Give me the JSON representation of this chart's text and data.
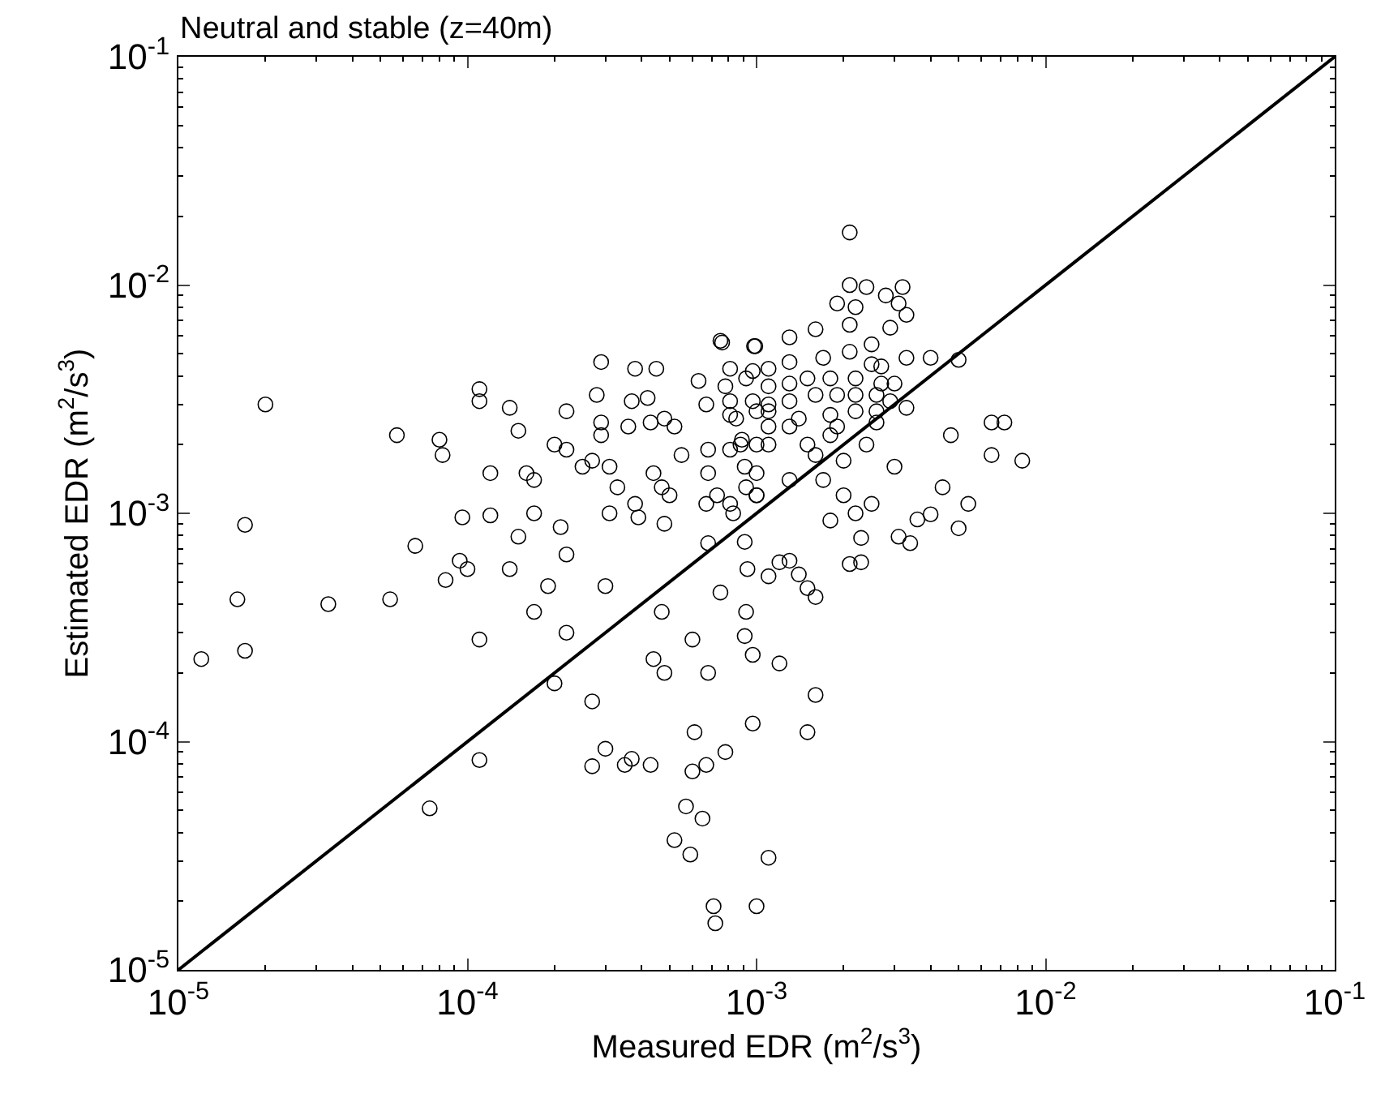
{
  "chart_data": {
    "type": "scatter",
    "title": "Neutral and stable (z=40m)",
    "xlabel": "Measured EDR (m$^{2}$/s$^{3}$)",
    "ylabel": "Estimated EDR (m$^{2}$/s$^{3}$)",
    "log": "xy",
    "xlim": [
      1e-05,
      0.1
    ],
    "ylim": [
      1e-05,
      0.1
    ],
    "xticks": [
      {
        "value": 1e-05,
        "label": "10$^{-5}$"
      },
      {
        "value": 0.0001,
        "label": "10$^{-4}$"
      },
      {
        "value": 0.001,
        "label": "10$^{-3}$"
      },
      {
        "value": 0.01,
        "label": "10$^{-2}$"
      },
      {
        "value": 0.1,
        "label": "10$^{-1}$"
      }
    ],
    "yticks": [
      {
        "value": 1e-05,
        "label": "10$^{-5}$"
      },
      {
        "value": 0.0001,
        "label": "10$^{-4}$"
      },
      {
        "value": 0.001,
        "label": "10$^{-3}$"
      },
      {
        "value": 0.01,
        "label": "10$^{-2}$"
      },
      {
        "value": 0.1,
        "label": "10$^{-1}$"
      }
    ],
    "series": [
      {
        "color": "#000000",
        "marker": "circle",
        "x": [
          1.2e-05,
          1.7e-05,
          1.6e-05,
          1.7e-05,
          2e-05,
          3.3e-05,
          5.4e-05,
          5.7e-05,
          6.6e-05,
          8e-05,
          8.2e-05,
          0.00011,
          0.00011,
          0.00011,
          0.00012,
          9.6e-05,
          0.00012,
          8.4e-05,
          9.4e-05,
          0.0001,
          0.00011,
          7.4e-05,
          0.00014,
          0.00014,
          0.00015,
          0.00017,
          0.00015,
          0.00017,
          0.00019,
          0.00021,
          0.00022,
          0.00022,
          0.00022,
          0.00016,
          0.00017,
          0.0002,
          0.00022,
          0.00025,
          0.00027,
          0.00029,
          0.00028,
          0.00029,
          0.00029,
          0.00031,
          0.00031,
          0.00033,
          0.00036,
          0.00037,
          0.00038,
          0.00039,
          0.00038,
          0.0003,
          0.0002,
          0.00027,
          0.0003,
          0.00027,
          0.00035,
          0.00037,
          0.00043,
          0.00045,
          0.00042,
          0.00043,
          0.00044,
          0.00047,
          0.0005,
          0.00048,
          0.00047,
          0.00044,
          0.00048,
          0.00048,
          0.00052,
          0.00055,
          0.0006,
          0.00061,
          0.0006,
          0.00067,
          0.00078,
          0.00057,
          0.00065,
          0.00052,
          0.00059,
          0.00068,
          0.00075,
          0.00068,
          0.00067,
          0.00076,
          0.00097,
          0.00091,
          0.00093,
          0.00092,
          0.00091,
          0.00097,
          0.0011,
          0.001,
          0.00081,
          0.00073,
          0.00098,
          0.00063,
          0.00078,
          0.00092,
          0.001,
          0.00085,
          0.00067,
          0.00068,
          0.00081,
          0.00089,
          0.001,
          0.00091,
          0.001,
          0.00068,
          0.0021,
          0.0021,
          0.0024,
          0.0032,
          0.0019,
          0.0022,
          0.0028,
          0.0031,
          0.0033,
          0.00075,
          0.00099,
          0.0013,
          0.0016,
          0.0021,
          0.0029,
          0.0025,
          0.004,
          0.005,
          0.0033,
          0.00081,
          0.00097,
          0.0011,
          0.0013,
          0.0017,
          0.0021,
          0.0025,
          0.0027,
          0.0011,
          0.0013,
          0.0015,
          0.0018,
          0.0022,
          0.0027,
          0.003,
          0.00081,
          0.00097,
          0.0011,
          0.0013,
          0.0016,
          0.0019,
          0.0022,
          0.0026,
          0.00081,
          0.0011,
          0.0014,
          0.0018,
          0.0022,
          0.0026,
          0.0029,
          0.0033,
          0.0026,
          0.0019,
          0.0013,
          0.0011,
          0.0047,
          0.0065,
          0.0072,
          0.00088,
          0.0011,
          0.0015,
          0.0018,
          0.0024,
          0.0065,
          0.0083,
          0.003,
          0.0016,
          0.002,
          0.0017,
          0.0013,
          0.001,
          0.00092,
          0.00083,
          0.002,
          0.0022,
          0.0025,
          0.0018,
          0.0054,
          0.0044,
          0.004,
          0.0036,
          0.005,
          0.0031,
          0.0034,
          0.0023,
          0.0023,
          0.0021,
          0.0011,
          0.0012,
          0.0013,
          0.0014,
          0.0015,
          0.0016,
          0.0012,
          0.0016,
          0.0015,
          0.00071,
          0.00072,
          0.001
        ],
        "values": [
          0.00023,
          0.00025,
          0.00042,
          0.00089,
          0.003,
          0.0004,
          0.00042,
          0.0022,
          0.00072,
          0.0021,
          0.0018,
          0.0035,
          0.0031,
          0.00028,
          0.0015,
          0.00096,
          0.00098,
          0.00051,
          0.00062,
          0.00057,
          8.3e-05,
          5.1e-05,
          0.00057,
          0.0029,
          0.0023,
          0.001,
          0.00079,
          0.00037,
          0.00048,
          0.00087,
          0.00066,
          0.0003,
          0.0028,
          0.0015,
          0.0014,
          0.002,
          0.0019,
          0.0016,
          0.0017,
          0.0046,
          0.0033,
          0.0025,
          0.0022,
          0.0016,
          0.001,
          0.0013,
          0.0024,
          0.0031,
          0.0043,
          0.00096,
          0.0011,
          0.00048,
          0.00018,
          0.00015,
          9.3e-05,
          7.8e-05,
          7.9e-05,
          8.4e-05,
          7.9e-05,
          0.0043,
          0.0032,
          0.0025,
          0.0015,
          0.0013,
          0.0012,
          0.0009,
          0.00037,
          0.00023,
          0.0002,
          0.0026,
          0.0024,
          0.0018,
          0.00028,
          0.00011,
          7.4e-05,
          7.9e-05,
          9e-05,
          5.2e-05,
          4.6e-05,
          3.7e-05,
          3.2e-05,
          0.0002,
          0.00045,
          0.00074,
          0.0011,
          0.0056,
          0.00012,
          0.00075,
          0.00057,
          0.00037,
          0.00029,
          0.00024,
          3.1e-05,
          0.0012,
          0.0011,
          0.0012,
          0.0054,
          0.0038,
          0.0036,
          0.0039,
          0.0028,
          0.0026,
          0.003,
          0.0019,
          0.0019,
          0.0021,
          0.002,
          0.0016,
          0.0012,
          0.0015,
          0.017,
          0.01,
          0.0098,
          0.0098,
          0.0083,
          0.008,
          0.009,
          0.0083,
          0.0074,
          0.0057,
          0.0054,
          0.0059,
          0.0064,
          0.0067,
          0.0065,
          0.0055,
          0.0048,
          0.0047,
          0.0048,
          0.0043,
          0.0042,
          0.0043,
          0.0046,
          0.0048,
          0.0051,
          0.0045,
          0.0044,
          0.0036,
          0.0037,
          0.0039,
          0.0039,
          0.0039,
          0.0037,
          0.0037,
          0.0031,
          0.0031,
          0.003,
          0.0031,
          0.0033,
          0.0033,
          0.0033,
          0.0033,
          0.0027,
          0.0028,
          0.0026,
          0.0027,
          0.0028,
          0.0028,
          0.0031,
          0.0029,
          0.0025,
          0.0024,
          0.0024,
          0.0024,
          0.0022,
          0.0025,
          0.0025,
          0.002,
          0.002,
          0.002,
          0.0022,
          0.002,
          0.0018,
          0.0017,
          0.0016,
          0.0018,
          0.0017,
          0.0014,
          0.0014,
          0.0015,
          0.0013,
          0.001,
          0.0012,
          0.001,
          0.0011,
          0.00093,
          0.0011,
          0.0013,
          0.00099,
          0.00094,
          0.00086,
          0.00079,
          0.00074,
          0.00078,
          0.00061,
          0.0006,
          0.00053,
          0.00061,
          0.00062,
          0.00054,
          0.00047,
          0.00043,
          0.00022,
          0.00016,
          0.00011,
          1.9e-05,
          1.6e-05,
          1.9e-05
        ]
      },
      {
        "type": "line",
        "color": "#000000",
        "line_style": "solid",
        "marker": "none",
        "x": [
          1e-05,
          0.1
        ],
        "values": [
          1e-05,
          0.1
        ]
      }
    ]
  }
}
